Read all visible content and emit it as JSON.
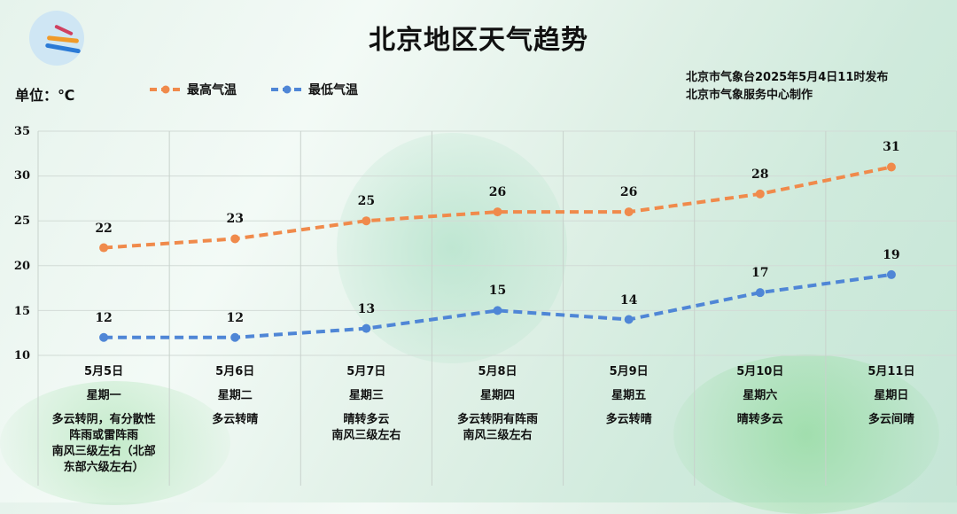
{
  "header": {
    "title": "北京地区天气趋势",
    "unit_label": "单位：℃",
    "issuer_line1": "北京市气象台2025年5月4日11时发布",
    "issuer_line2": "北京市气象服务中心制作",
    "logo_icon": "meteorological-service-logo"
  },
  "legend": {
    "high": {
      "label": "最高气温",
      "color": "#f08a4b"
    },
    "low": {
      "label": "最低气温",
      "color": "#4f86d6"
    }
  },
  "y_ticks": [
    "35",
    "30",
    "25",
    "20",
    "15",
    "10"
  ],
  "days": [
    {
      "date": "5月5日",
      "weekday": "星期一",
      "desc": [
        "多云转阴，有分散性",
        "阵雨或雷阵雨",
        "南风三级左右（北部",
        "东部六级左右）"
      ]
    },
    {
      "date": "5月6日",
      "weekday": "星期二",
      "desc": [
        "多云转晴"
      ]
    },
    {
      "date": "5月7日",
      "weekday": "星期三",
      "desc": [
        "晴转多云",
        "南风三级左右"
      ]
    },
    {
      "date": "5月8日",
      "weekday": "星期四",
      "desc": [
        "多云转阴有阵雨",
        "南风三级左右"
      ]
    },
    {
      "date": "5月9日",
      "weekday": "星期五",
      "desc": [
        "多云转晴"
      ]
    },
    {
      "date": "5月10日",
      "weekday": "星期六",
      "desc": [
        "晴转多云"
      ]
    },
    {
      "date": "5月11日",
      "weekday": "星期日",
      "desc": [
        "多云间晴"
      ]
    }
  ],
  "chart_data": {
    "type": "line",
    "title": "北京地区天气趋势",
    "categories": [
      "5月5日",
      "5月6日",
      "5月7日",
      "5月8日",
      "5月9日",
      "5月10日",
      "5月11日"
    ],
    "series": [
      {
        "name": "最高气温",
        "values": [
          22,
          23,
          25,
          26,
          26,
          28,
          31
        ],
        "color": "#f08a4b"
      },
      {
        "name": "最低气温",
        "values": [
          12,
          12,
          13,
          15,
          14,
          17,
          19
        ],
        "color": "#4f86d6"
      }
    ],
    "xlabel": "",
    "ylabel": "单位：℃",
    "ylim": [
      10,
      35
    ],
    "yticks": [
      10,
      15,
      20,
      25,
      30,
      35
    ],
    "grid": true,
    "legend_position": "top-left",
    "line_style": "dashed"
  }
}
